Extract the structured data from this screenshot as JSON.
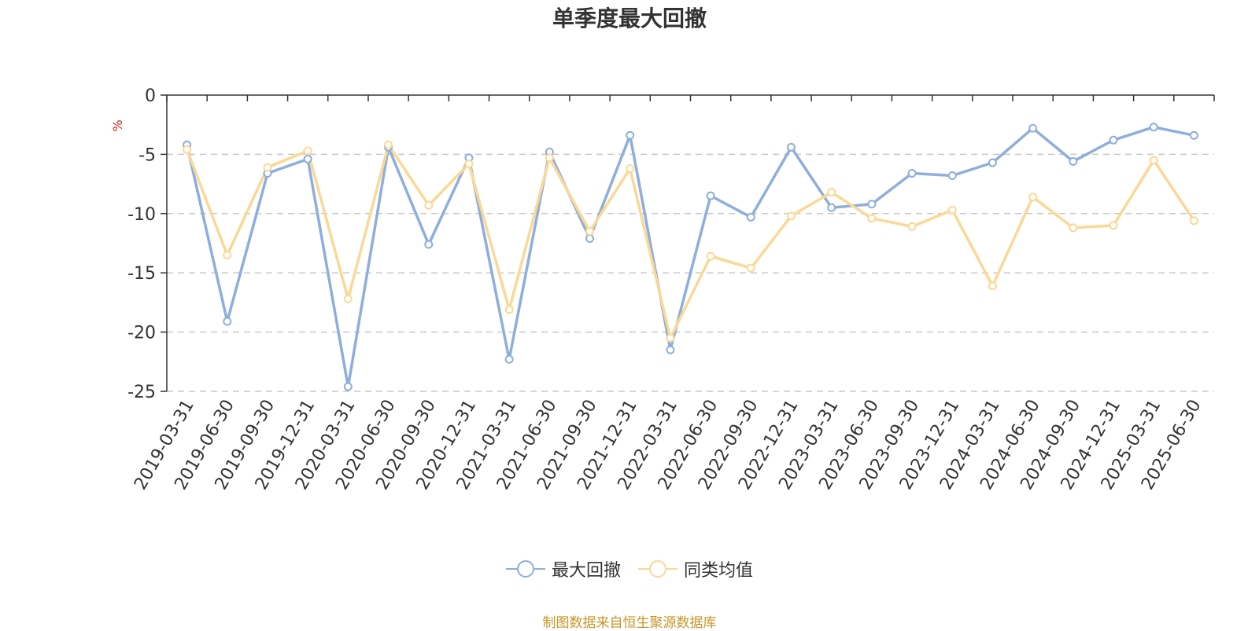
{
  "chart_data": {
    "type": "line",
    "title": "单季度最大回撤",
    "ylabel": "%",
    "xlabel": "",
    "ylim": [
      -25,
      0
    ],
    "yticks": [
      0,
      -5,
      -10,
      -15,
      -20,
      -25
    ],
    "grid": true,
    "legend_position": "bottom",
    "categories": [
      "2019-03-31",
      "2019-06-30",
      "2019-09-30",
      "2019-12-31",
      "2020-03-31",
      "2020-06-30",
      "2020-09-30",
      "2020-12-31",
      "2021-03-31",
      "2021-06-30",
      "2021-09-30",
      "2021-12-31",
      "2022-03-31",
      "2022-06-30",
      "2022-09-30",
      "2022-12-31",
      "2023-03-31",
      "2023-06-30",
      "2023-09-30",
      "2023-12-31",
      "2024-03-31",
      "2024-06-30",
      "2024-09-30",
      "2024-12-31",
      "2025-03-31",
      "2025-06-30"
    ],
    "series": [
      {
        "name": "最大回撤",
        "color": "#8eaedb",
        "values": [
          -4.2,
          -19.1,
          -6.6,
          -5.4,
          -24.6,
          -4.4,
          -12.6,
          -5.3,
          -22.3,
          -4.8,
          -12.1,
          -3.4,
          -21.5,
          -8.5,
          -10.3,
          -4.4,
          -9.5,
          -9.2,
          -6.6,
          -6.8,
          -5.7,
          -2.8,
          -5.6,
          -3.8,
          -2.7,
          -3.4
        ]
      },
      {
        "name": "同类均值",
        "color": "#fbd896",
        "values": [
          -4.6,
          -13.5,
          -6.1,
          -4.7,
          -17.2,
          -4.2,
          -9.3,
          -5.8,
          -18.1,
          -5.3,
          -11.5,
          -6.2,
          -20.5,
          -13.6,
          -14.6,
          -10.2,
          -8.2,
          -10.4,
          -11.1,
          -9.7,
          -16.1,
          -8.6,
          -11.2,
          -11.0,
          -5.5,
          -10.6
        ]
      }
    ]
  },
  "footer": {
    "source": "制图数据来自恒生聚源数据库",
    "source_color": "#c8962a"
  },
  "axis_unit_color": "#e02020"
}
